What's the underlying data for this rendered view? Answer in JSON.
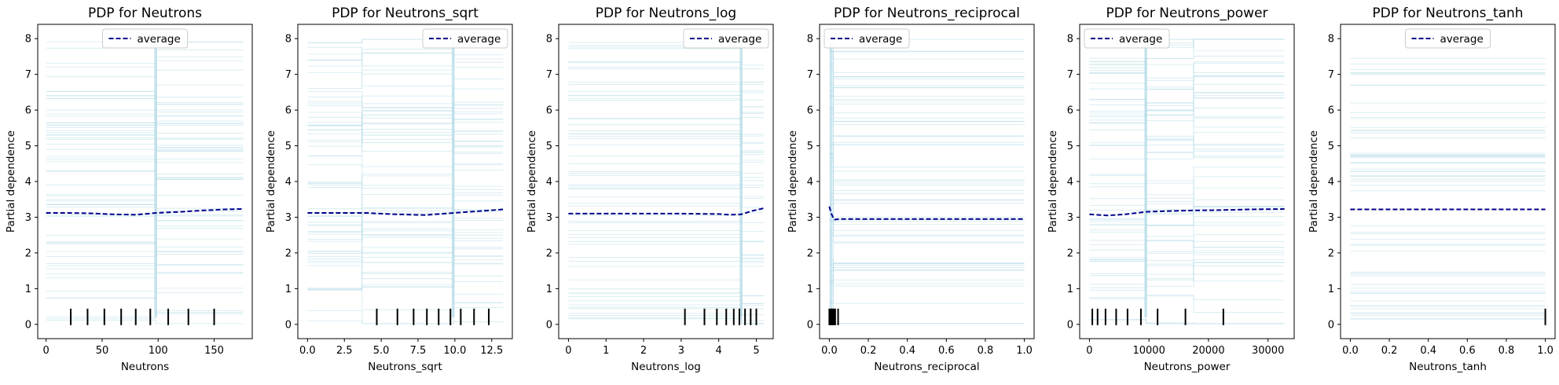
{
  "figure": {
    "ice_color": "#add8e6",
    "average_color": "#00008b",
    "rug_color": "#000000",
    "axes_color": "#000000"
  },
  "chart_data": [
    {
      "type": "line",
      "title": "PDP for Neutrons",
      "xlabel": "Neutrons",
      "ylabel": "Partial dependence",
      "xlim": [
        -7.5,
        184
      ],
      "ylim": [
        -0.4,
        8.4
      ],
      "xticks": [
        0,
        50,
        100,
        150
      ],
      "xtick_labels": [
        "0",
        "50",
        "100",
        "150"
      ],
      "yticks": [
        0,
        1,
        2,
        3,
        4,
        5,
        6,
        7,
        8
      ],
      "ytick_labels": [
        "0",
        "1",
        "2",
        "3",
        "4",
        "5",
        "6",
        "7",
        "8"
      ],
      "legend": {
        "label": "average",
        "placement": "top-center"
      },
      "ice": {
        "count": 60,
        "x_range": [
          0,
          176
        ],
        "step_x": [
          98
        ],
        "vertical_spike_x": 98
      },
      "series": [
        {
          "name": "average",
          "style": "dashed",
          "x": [
            0,
            20,
            40,
            60,
            80,
            98,
            120,
            140,
            160,
            176
          ],
          "y": [
            3.12,
            3.12,
            3.11,
            3.08,
            3.07,
            3.12,
            3.15,
            3.19,
            3.22,
            3.23
          ]
        }
      ],
      "rug_x": [
        22,
        37,
        52,
        67,
        80,
        93,
        109,
        127,
        150
      ]
    },
    {
      "type": "line",
      "title": "PDP for Neutrons_sqrt",
      "xlabel": "Neutrons_sqrt",
      "ylabel": "Partial dependence",
      "xlim": [
        -0.66,
        13.9
      ],
      "ylim": [
        -0.4,
        8.4
      ],
      "xticks": [
        0,
        2.5,
        5,
        7.5,
        10,
        12.5
      ],
      "xtick_labels": [
        "0.0",
        "2.5",
        "5.0",
        "7.5",
        "10.0",
        "12.5"
      ],
      "yticks": [
        0,
        1,
        2,
        3,
        4,
        5,
        6,
        7,
        8
      ],
      "ytick_labels": [
        "0",
        "1",
        "2",
        "3",
        "4",
        "5",
        "6",
        "7",
        "8"
      ],
      "legend": {
        "label": "average",
        "placement": "top-right"
      },
      "ice": {
        "count": 60,
        "x_range": [
          0,
          13.27
        ],
        "step_x": [
          3.7,
          9.9
        ],
        "vertical_spike_x": 9.9
      },
      "series": [
        {
          "name": "average",
          "style": "dashed",
          "x": [
            0,
            2,
            4,
            6,
            8,
            9.9,
            11,
            12,
            13.27
          ],
          "y": [
            3.12,
            3.12,
            3.12,
            3.08,
            3.06,
            3.12,
            3.15,
            3.18,
            3.22
          ]
        }
      ],
      "rug_x": [
        4.7,
        6.1,
        7.2,
        8.1,
        8.9,
        9.7,
        10.4,
        11.3,
        12.3
      ]
    },
    {
      "type": "line",
      "title": "PDP for Neutrons_log",
      "xlabel": "Neutrons_log",
      "ylabel": "Partial dependence",
      "xlim": [
        -0.26,
        5.45
      ],
      "ylim": [
        -0.4,
        8.4
      ],
      "xticks": [
        0,
        1,
        2,
        3,
        4,
        5
      ],
      "xtick_labels": [
        "0",
        "1",
        "2",
        "3",
        "4",
        "5"
      ],
      "yticks": [
        0,
        1,
        2,
        3,
        4,
        5,
        6,
        7,
        8
      ],
      "ytick_labels": [
        "0",
        "1",
        "2",
        "3",
        "4",
        "5",
        "6",
        "7",
        "8"
      ],
      "legend": {
        "label": "average",
        "placement": "top-right"
      },
      "ice": {
        "count": 60,
        "x_range": [
          0,
          5.2
        ],
        "step_x": [
          4.6
        ],
        "vertical_spike_x": 4.6
      },
      "series": [
        {
          "name": "average",
          "style": "dashed",
          "x": [
            0,
            1,
            2,
            3,
            4,
            4.3,
            4.6,
            4.9,
            5.2
          ],
          "y": [
            3.1,
            3.1,
            3.1,
            3.1,
            3.09,
            3.07,
            3.08,
            3.18,
            3.25
          ]
        }
      ],
      "rug_x": [
        3.1,
        3.62,
        3.95,
        4.2,
        4.4,
        4.55,
        4.7,
        4.85,
        5.0
      ]
    },
    {
      "type": "line",
      "title": "PDP for Neutrons_reciprocal",
      "xlabel": "Neutrons_reciprocal",
      "ylabel": "Partial dependence",
      "xlim": [
        -0.05,
        1.05
      ],
      "ylim": [
        -0.4,
        8.4
      ],
      "xticks": [
        0,
        0.2,
        0.4,
        0.6,
        0.8,
        1.0
      ],
      "xtick_labels": [
        "0.0",
        "0.2",
        "0.4",
        "0.6",
        "0.8",
        "1.0"
      ],
      "yticks": [
        0,
        1,
        2,
        3,
        4,
        5,
        6,
        7,
        8
      ],
      "ytick_labels": [
        "0",
        "1",
        "2",
        "3",
        "4",
        "5",
        "6",
        "7",
        "8"
      ],
      "legend": {
        "label": "average",
        "placement": "top-left"
      },
      "ice": {
        "count": 60,
        "x_range": [
          0,
          1.0
        ],
        "step_x": [
          0.02
        ],
        "vertical_spike_x": 0.01
      },
      "series": [
        {
          "name": "average",
          "style": "dashed",
          "x": [
            0,
            0.01,
            0.025,
            0.05,
            0.2,
            0.5,
            1.0
          ],
          "y": [
            3.3,
            3.1,
            2.93,
            2.95,
            2.95,
            2.95,
            2.95
          ]
        }
      ],
      "rug_x": [
        0.0,
        0.005,
        0.01,
        0.015,
        0.02,
        0.025,
        0.03,
        0.045
      ]
    },
    {
      "type": "line",
      "title": "PDP for Neutrons_power",
      "xlabel": "Neutrons_power",
      "ylabel": "Partial dependence",
      "xlim": [
        -1640,
        34400
      ],
      "ylim": [
        -0.4,
        8.4
      ],
      "xticks": [
        0,
        10000,
        20000,
        30000
      ],
      "xtick_labels": [
        "0",
        "10000",
        "20000",
        "30000"
      ],
      "yticks": [
        0,
        1,
        2,
        3,
        4,
        5,
        6,
        7,
        8
      ],
      "ytick_labels": [
        "0",
        "1",
        "2",
        "3",
        "4",
        "5",
        "6",
        "7",
        "8"
      ],
      "legend": {
        "label": "average",
        "placement": "top-left"
      },
      "ice": {
        "count": 60,
        "x_range": [
          0,
          32760
        ],
        "step_x": [
          9500,
          17500
        ],
        "vertical_spike_x": 9500
      },
      "series": [
        {
          "name": "average",
          "style": "dashed",
          "x": [
            0,
            3000,
            6000,
            9500,
            13000,
            17500,
            22000,
            27000,
            32760
          ],
          "y": [
            3.08,
            3.05,
            3.08,
            3.15,
            3.17,
            3.19,
            3.2,
            3.22,
            3.23
          ]
        }
      ],
      "rug_x": [
        484,
        1369,
        2704,
        4489,
        6400,
        8649,
        11449,
        16129,
        22500
      ]
    },
    {
      "type": "line",
      "title": "PDP for Neutrons_tanh",
      "xlabel": "Neutrons_tanh",
      "ylabel": "Partial dependence",
      "xlim": [
        -0.05,
        1.05
      ],
      "ylim": [
        -0.4,
        8.4
      ],
      "xticks": [
        0,
        0.2,
        0.4,
        0.6,
        0.8,
        1.0
      ],
      "xtick_labels": [
        "0.0",
        "0.2",
        "0.4",
        "0.6",
        "0.8",
        "1.0"
      ],
      "yticks": [
        0,
        1,
        2,
        3,
        4,
        5,
        6,
        7,
        8
      ],
      "ytick_labels": [
        "0",
        "1",
        "2",
        "3",
        "4",
        "5",
        "6",
        "7",
        "8"
      ],
      "legend": {
        "label": "average",
        "placement": "top-center"
      },
      "ice": {
        "count": 60,
        "x_range": [
          0,
          1.0
        ],
        "step_x": [],
        "vertical_spike_x": null
      },
      "series": [
        {
          "name": "average",
          "style": "dashed",
          "x": [
            0,
            1.0
          ],
          "y": [
            3.22,
            3.22
          ]
        }
      ],
      "rug_x": [
        1.0
      ]
    }
  ]
}
